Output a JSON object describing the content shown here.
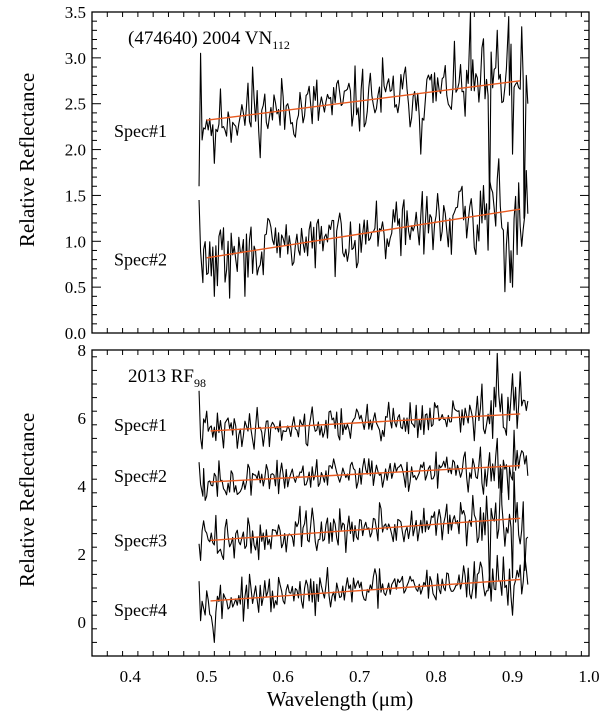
{
  "chart_data": [
    {
      "type": "line",
      "title": "(474640) 2004 VN",
      "title_subscript": "112",
      "xlabel": "",
      "ylabel": "Relative Reflectance",
      "xlim": [
        0.35,
        1.0
      ],
      "ylim": [
        0.0,
        3.5
      ],
      "x_ticks": [
        0.4,
        0.5,
        0.6,
        0.7,
        0.8,
        0.9,
        1.0
      ],
      "y_ticks": [
        0.0,
        0.5,
        1.0,
        1.5,
        2.0,
        2.5,
        3.0,
        3.5
      ],
      "y_tick_labels": [
        "0.0",
        "0.5",
        "1.0",
        "1.5",
        "2.0",
        "2.5",
        "3.0",
        "3.5"
      ],
      "x_tick_labels_visible": false,
      "spectrum_x_range": [
        0.49,
        0.92
      ],
      "colors": {
        "spectrum": "#000000",
        "fit": "#e8591f"
      },
      "series": [
        {
          "name": "Spec#1",
          "label": "Spec#1",
          "label_y": 2.2,
          "baseline": 2.45,
          "noise": 0.22,
          "seed": 11,
          "fit": {
            "x": [
              0.5,
              0.91
            ],
            "y": [
              2.32,
              2.75
            ]
          },
          "points": [
            [
              0.49,
              1.6
            ],
            [
              0.492,
              3.05
            ],
            [
              0.51,
              1.85
            ],
            [
              0.56,
              2.9
            ],
            [
              0.73,
              3.0
            ],
            [
              0.78,
              1.95
            ],
            [
              0.845,
              3.5
            ],
            [
              0.87,
              1.35
            ],
            [
              0.88,
              3.3
            ],
            [
              0.895,
              3.45
            ],
            [
              0.9,
              1.95
            ],
            [
              0.915,
              1.25
            ],
            [
              0.92,
              2.5
            ]
          ]
        },
        {
          "name": "Spec#2",
          "label": "Spec#2",
          "label_y": 0.8,
          "baseline": 1.05,
          "noise": 0.2,
          "seed": 29,
          "fit": {
            "x": [
              0.5,
              0.91
            ],
            "y": [
              0.82,
              1.35
            ]
          },
          "points": [
            [
              0.49,
              1.45
            ],
            [
              0.495,
              0.55
            ],
            [
              0.51,
              0.4
            ],
            [
              0.53,
              0.38
            ],
            [
              0.55,
              0.4
            ],
            [
              0.86,
              1.2
            ],
            [
              0.882,
              1.9
            ],
            [
              0.89,
              0.45
            ],
            [
              0.897,
              0.55
            ],
            [
              0.9,
              0.5
            ],
            [
              0.92,
              1.3
            ]
          ]
        }
      ]
    },
    {
      "type": "line",
      "title": "2013 RF",
      "title_subscript": "98",
      "xlabel": "Wavelength (μm)",
      "ylabel": "Relative Reflectance",
      "xlim": [
        0.35,
        1.0
      ],
      "ylim": [
        -1.0,
        8.0
      ],
      "x_ticks": [
        0.4,
        0.5,
        0.6,
        0.7,
        0.8,
        0.9,
        1.0
      ],
      "x_tick_labels": [
        "0.4",
        "0.5",
        "0.6",
        "0.7",
        "0.8",
        "0.9",
        "1.0"
      ],
      "y_ticks": [
        0,
        2,
        4,
        6,
        8
      ],
      "y_tick_labels": [
        "0",
        "2",
        "4",
        "6",
        "8"
      ],
      "spectrum_x_range": [
        0.49,
        0.92
      ],
      "colors": {
        "spectrum": "#000000",
        "fit": "#e8591f"
      },
      "series": [
        {
          "name": "Spec#1",
          "label": "Spec#1",
          "label_y": 5.8,
          "baseline": 5.95,
          "noise": 0.35,
          "seed": 41,
          "fit": {
            "x": [
              0.505,
              0.91
            ],
            "y": [
              5.62,
              6.12
            ]
          },
          "points": [
            [
              0.49,
              6.8
            ],
            [
              0.86,
              7.0
            ],
            [
              0.88,
              7.9
            ],
            [
              0.9,
              7.3
            ],
            [
              0.92,
              6.5
            ]
          ]
        },
        {
          "name": "Spec#2",
          "label": "Spec#2",
          "label_y": 4.3,
          "baseline": 4.45,
          "noise": 0.32,
          "seed": 57,
          "fit": {
            "x": [
              0.505,
              0.91
            ],
            "y": [
              4.12,
              4.6
            ]
          },
          "points": [
            [
              0.49,
              4.7
            ],
            [
              0.495,
              3.7
            ],
            [
              0.88,
              5.4
            ],
            [
              0.895,
              3.6
            ],
            [
              0.92,
              4.3
            ]
          ]
        },
        {
          "name": "Spec#3",
          "label": "Spec#3",
          "label_y": 2.4,
          "baseline": 2.75,
          "noise": 0.4,
          "seed": 73,
          "fit": {
            "x": [
              0.505,
              0.91
            ],
            "y": [
              2.4,
              3.05
            ]
          },
          "points": [
            [
              0.49,
              2.3
            ],
            [
              0.87,
              1.0
            ],
            [
              0.885,
              4.5
            ],
            [
              0.9,
              1.3
            ],
            [
              0.92,
              2.5
            ]
          ]
        },
        {
          "name": "Spec#4",
          "label": "Spec#4",
          "label_y": 0.35,
          "baseline": 0.95,
          "noise": 0.33,
          "seed": 97,
          "fit": {
            "x": [
              0.505,
              0.91
            ],
            "y": [
              0.62,
              1.25
            ]
          },
          "points": [
            [
              0.49,
              1.2
            ],
            [
              0.51,
              -0.6
            ],
            [
              0.52,
              0.1
            ],
            [
              0.86,
              1.6
            ],
            [
              0.9,
              0.2
            ],
            [
              0.92,
              1.1
            ]
          ]
        }
      ]
    }
  ]
}
